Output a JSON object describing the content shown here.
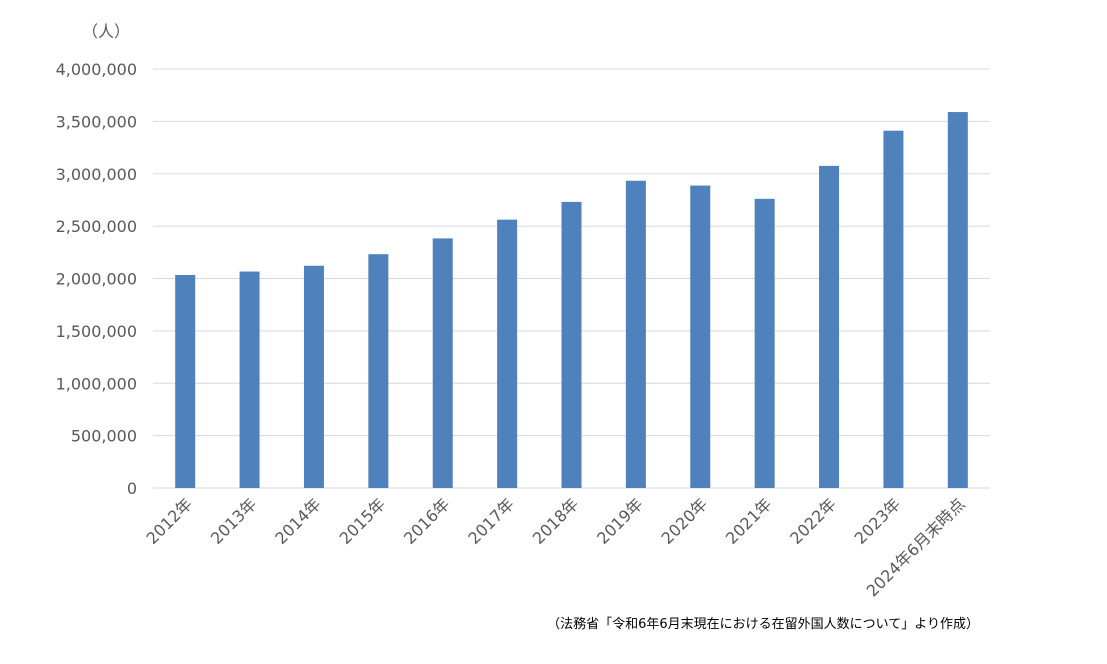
{
  "chart_data": {
    "type": "bar",
    "title": "",
    "xlabel": "",
    "ylabel": "（人）",
    "categories": [
      "2012年",
      "2013年",
      "2014年",
      "2015年",
      "2016年",
      "2017年",
      "2018年",
      "2019年",
      "2020年",
      "2021年",
      "2022年",
      "2023年",
      "2024年6月末時点"
    ],
    "series": [
      {
        "values": [
          2033656,
          2066445,
          2121831,
          2232189,
          2382822,
          2561848,
          2731093,
          2933137,
          2887116,
          2760635,
          3075213,
          3410992,
          3588956
        ]
      }
    ],
    "ylim": [
      0,
      4000000
    ],
    "yticks": [
      0,
      500000,
      1000000,
      1500000,
      2000000,
      2500000,
      3000000,
      3500000,
      4000000
    ],
    "ytick_labels": [
      "0",
      "500,000",
      "1,000,000",
      "1,500,000",
      "2,000,000",
      "2,500,000",
      "3,000,000",
      "3,500,000",
      "4,000,000"
    ],
    "grid": true,
    "legend": "none",
    "bar_color": "#4f81bd",
    "grid_color": "#d9d9d9",
    "axis_text_color": "#595959"
  },
  "unit_label": "（人）",
  "source_note": "（法務省「令和6年6月末現在における在留外国人数について」より作成）"
}
